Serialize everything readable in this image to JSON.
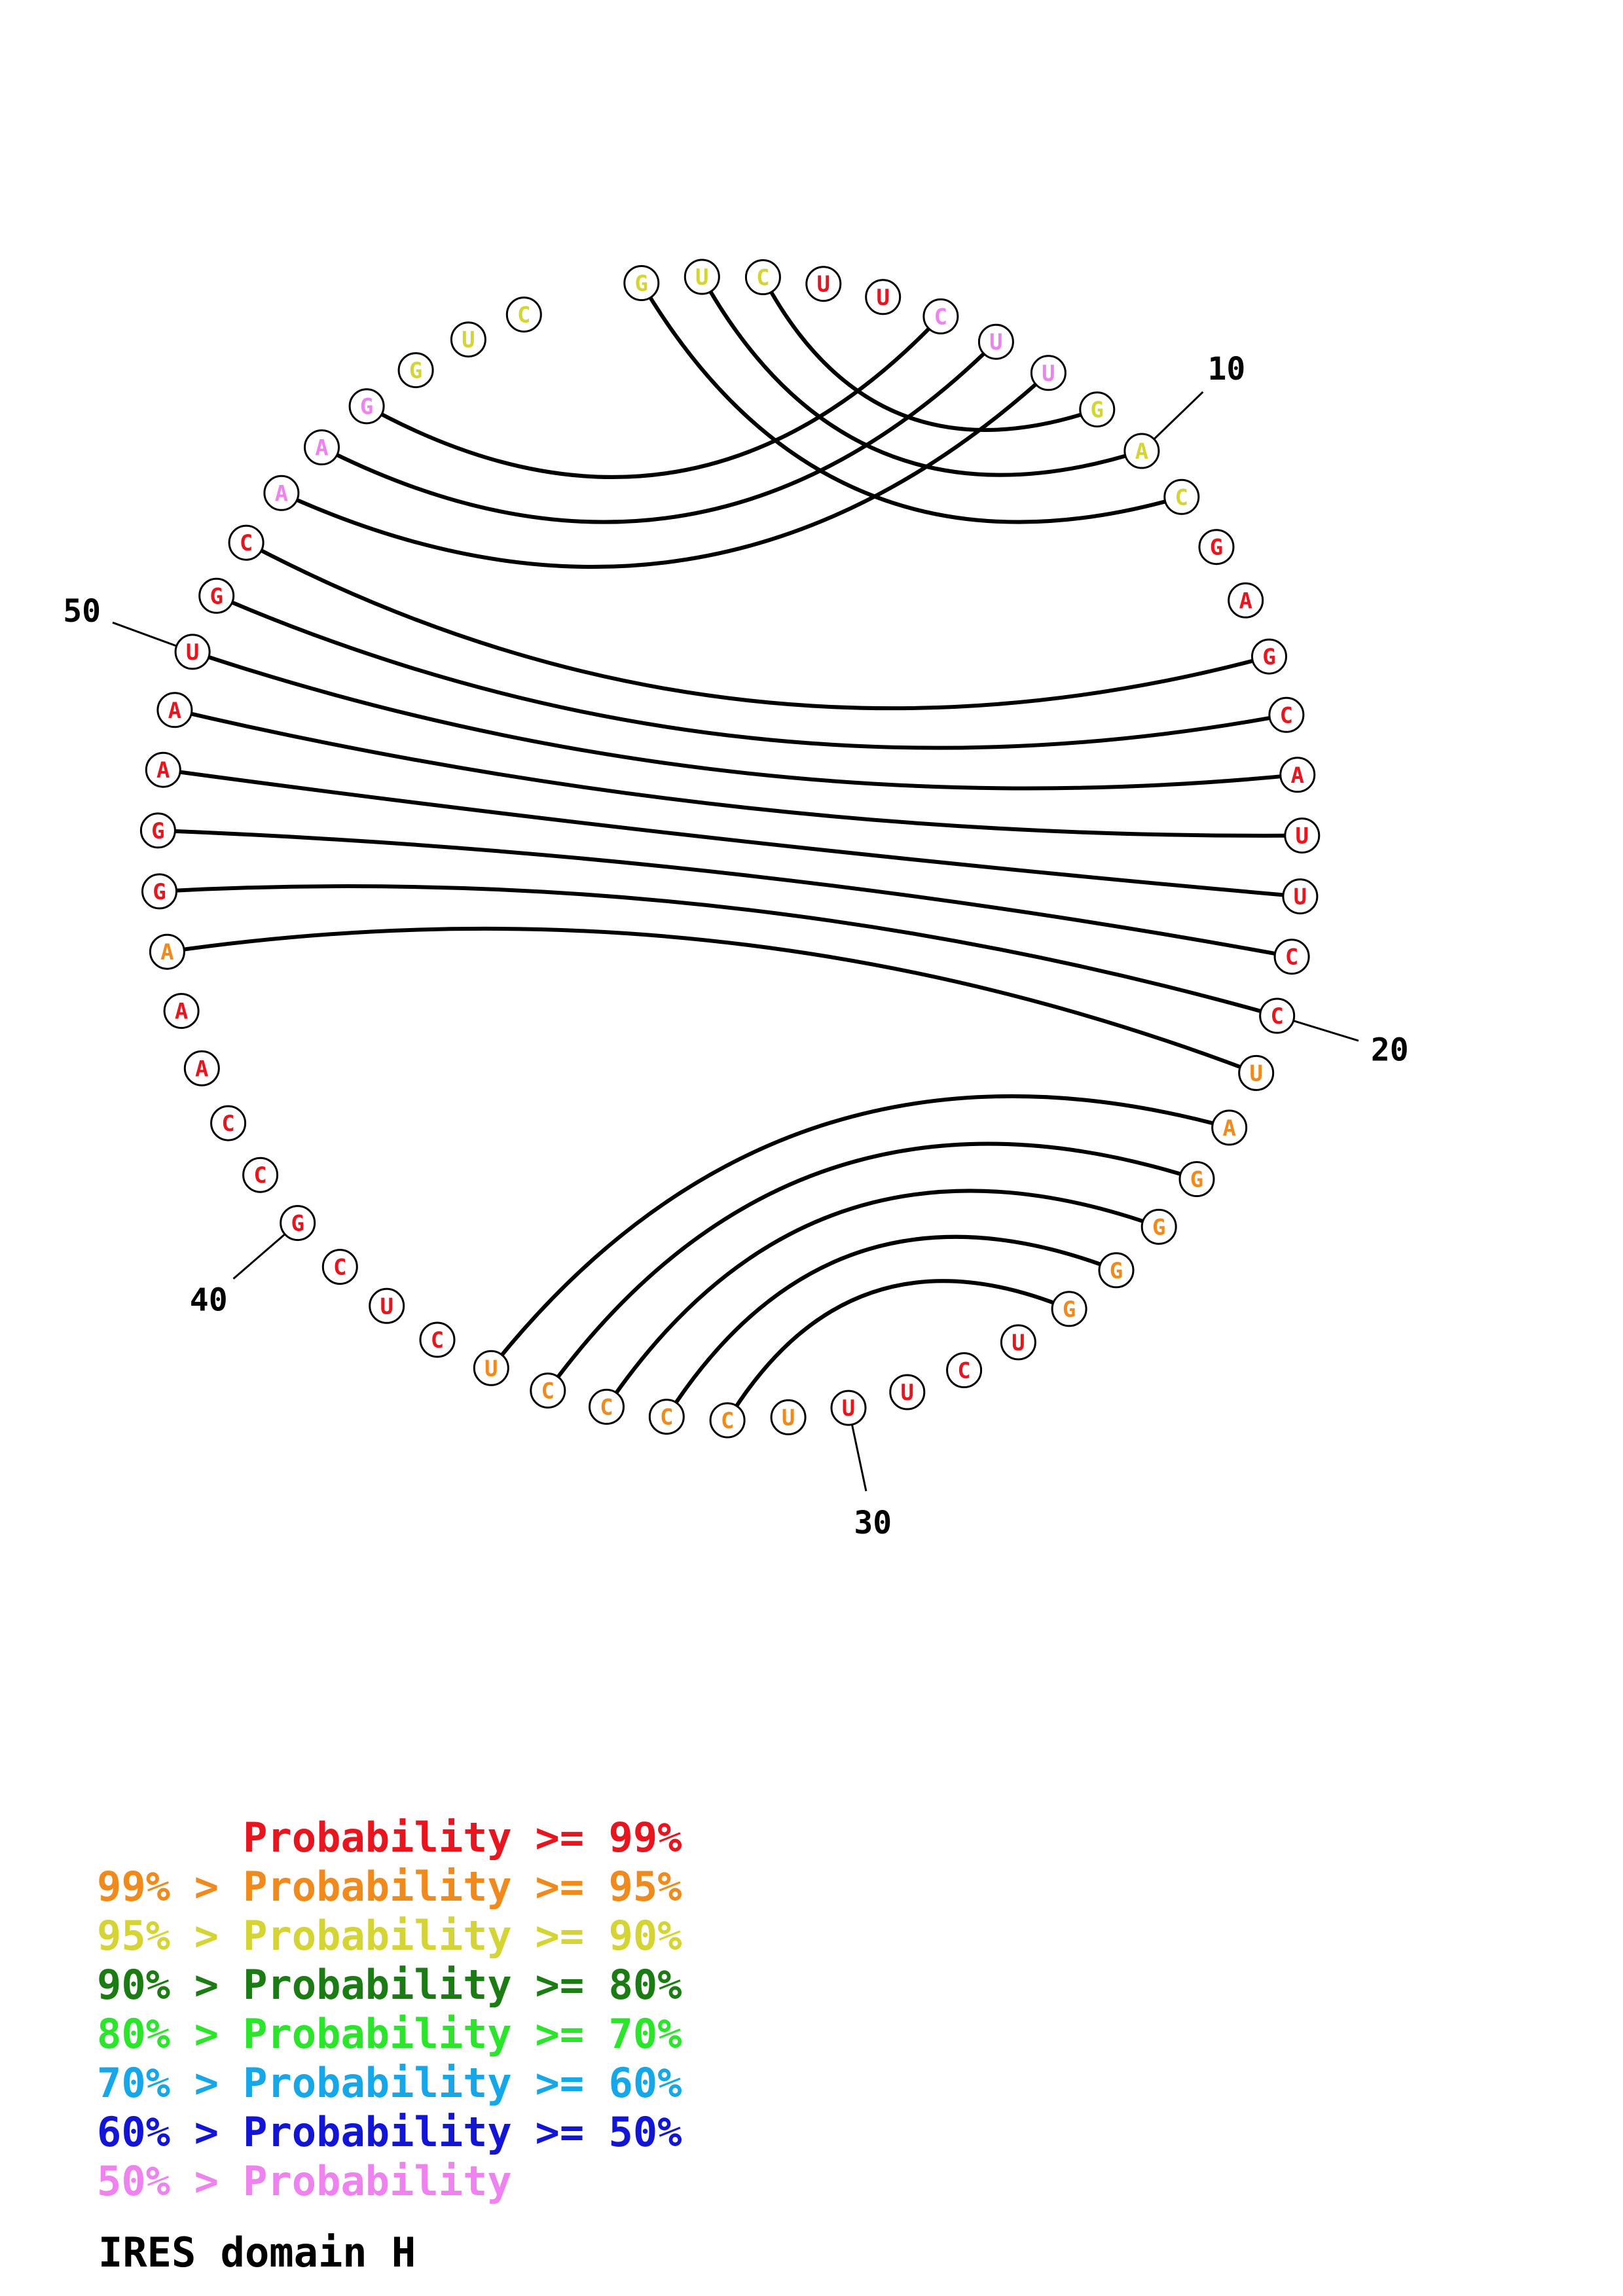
{
  "caption": "IRES domain H",
  "colors": {
    "p99": "#e8151f",
    "p95": "#f08a1d",
    "p90": "#d4d435",
    "p80": "#1c7c14",
    "p70": "#2ae52a",
    "p60": "#16a7e8",
    "p50": "#1215d6",
    "plow": "#ee82ee"
  },
  "legend": [
    {
      "lower": "",
      "op": "",
      "label": "Probability",
      "upper": ">= 99%",
      "color": "#e8151f"
    },
    {
      "lower": "99%",
      "op": ">",
      "label": "Probability",
      "upper": ">= 95%",
      "color": "#f08a1d"
    },
    {
      "lower": "95%",
      "op": ">",
      "label": "Probability",
      "upper": ">= 90%",
      "color": "#d4d435"
    },
    {
      "lower": "90%",
      "op": ">",
      "label": "Probability",
      "upper": ">= 80%",
      "color": "#1c7c14"
    },
    {
      "lower": "80%",
      "op": ">",
      "label": "Probability",
      "upper": ">= 70%",
      "color": "#2ae52a"
    },
    {
      "lower": "70%",
      "op": ">",
      "label": "Probability",
      "upper": ">= 60%",
      "color": "#16a7e8"
    },
    {
      "lower": "60%",
      "op": ">",
      "label": "Probability",
      "upper": ">= 50%",
      "color": "#1215d6"
    },
    {
      "lower": "50%",
      "op": ">",
      "label": "Probability",
      "upper": "",
      "color": "#ee82ee"
    }
  ],
  "nucleotides": [
    {
      "i": 1,
      "b": "G",
      "c": "p90"
    },
    {
      "i": 2,
      "b": "U",
      "c": "p90"
    },
    {
      "i": 3,
      "b": "C",
      "c": "p90"
    },
    {
      "i": 4,
      "b": "U",
      "c": "p99"
    },
    {
      "i": 5,
      "b": "U",
      "c": "p99"
    },
    {
      "i": 6,
      "b": "C",
      "c": "plow"
    },
    {
      "i": 7,
      "b": "U",
      "c": "plow"
    },
    {
      "i": 8,
      "b": "U",
      "c": "plow"
    },
    {
      "i": 9,
      "b": "G",
      "c": "p90"
    },
    {
      "i": 10,
      "b": "A",
      "c": "p90"
    },
    {
      "i": 11,
      "b": "C",
      "c": "p90"
    },
    {
      "i": 12,
      "b": "G",
      "c": "p99"
    },
    {
      "i": 13,
      "b": "A",
      "c": "p99"
    },
    {
      "i": 14,
      "b": "G",
      "c": "p99"
    },
    {
      "i": 15,
      "b": "C",
      "c": "p99"
    },
    {
      "i": 16,
      "b": "A",
      "c": "p99"
    },
    {
      "i": 17,
      "b": "U",
      "c": "p99"
    },
    {
      "i": 18,
      "b": "U",
      "c": "p99"
    },
    {
      "i": 19,
      "b": "C",
      "c": "p99"
    },
    {
      "i": 20,
      "b": "C",
      "c": "p99"
    },
    {
      "i": 21,
      "b": "U",
      "c": "p95"
    },
    {
      "i": 22,
      "b": "A",
      "c": "p95"
    },
    {
      "i": 23,
      "b": "G",
      "c": "p95"
    },
    {
      "i": 24,
      "b": "G",
      "c": "p95"
    },
    {
      "i": 25,
      "b": "G",
      "c": "p95"
    },
    {
      "i": 26,
      "b": "G",
      "c": "p95"
    },
    {
      "i": 27,
      "b": "U",
      "c": "p99"
    },
    {
      "i": 28,
      "b": "C",
      "c": "p99"
    },
    {
      "i": 29,
      "b": "U",
      "c": "p99"
    },
    {
      "i": 30,
      "b": "U",
      "c": "p99"
    },
    {
      "i": 31,
      "b": "U",
      "c": "p95"
    },
    {
      "i": 32,
      "b": "C",
      "c": "p95"
    },
    {
      "i": 33,
      "b": "C",
      "c": "p95"
    },
    {
      "i": 34,
      "b": "C",
      "c": "p95"
    },
    {
      "i": 35,
      "b": "C",
      "c": "p95"
    },
    {
      "i": 36,
      "b": "U",
      "c": "p95"
    },
    {
      "i": 37,
      "b": "C",
      "c": "p99"
    },
    {
      "i": 38,
      "b": "U",
      "c": "p99"
    },
    {
      "i": 39,
      "b": "C",
      "c": "p99"
    },
    {
      "i": 40,
      "b": "G",
      "c": "p99"
    },
    {
      "i": 41,
      "b": "C",
      "c": "p99"
    },
    {
      "i": 42,
      "b": "C",
      "c": "p99"
    },
    {
      "i": 43,
      "b": "A",
      "c": "p99"
    },
    {
      "i": 44,
      "b": "A",
      "c": "p99"
    },
    {
      "i": 45,
      "b": "A",
      "c": "p95"
    },
    {
      "i": 46,
      "b": "G",
      "c": "p99"
    },
    {
      "i": 47,
      "b": "G",
      "c": "p99"
    },
    {
      "i": 48,
      "b": "A",
      "c": "p99"
    },
    {
      "i": 49,
      "b": "A",
      "c": "p99"
    },
    {
      "i": 50,
      "b": "U",
      "c": "p99"
    },
    {
      "i": 51,
      "b": "G",
      "c": "p99"
    },
    {
      "i": 52,
      "b": "C",
      "c": "p99"
    },
    {
      "i": 53,
      "b": "A",
      "c": "plow"
    },
    {
      "i": 54,
      "b": "A",
      "c": "plow"
    },
    {
      "i": 55,
      "b": "G",
      "c": "plow"
    },
    {
      "i": 56,
      "b": "G",
      "c": "p90"
    },
    {
      "i": 57,
      "b": "U",
      "c": "p90"
    },
    {
      "i": 58,
      "b": "C",
      "c": "p90"
    }
  ],
  "pairs": [
    [
      1,
      11
    ],
    [
      2,
      10
    ],
    [
      3,
      9
    ],
    [
      6,
      55
    ],
    [
      7,
      54
    ],
    [
      8,
      53
    ],
    [
      14,
      52
    ],
    [
      15,
      51
    ],
    [
      16,
      50
    ],
    [
      17,
      49
    ],
    [
      18,
      48
    ],
    [
      19,
      47
    ],
    [
      20,
      46
    ],
    [
      21,
      45
    ],
    [
      22,
      36
    ],
    [
      23,
      35
    ],
    [
      24,
      34
    ],
    [
      25,
      33
    ],
    [
      26,
      32
    ]
  ],
  "position_labels": [
    {
      "i": 10,
      "text": "10"
    },
    {
      "i": 20,
      "text": "20"
    },
    {
      "i": 30,
      "text": "30"
    },
    {
      "i": 40,
      "text": "40"
    },
    {
      "i": 50,
      "text": "50"
    }
  ]
}
